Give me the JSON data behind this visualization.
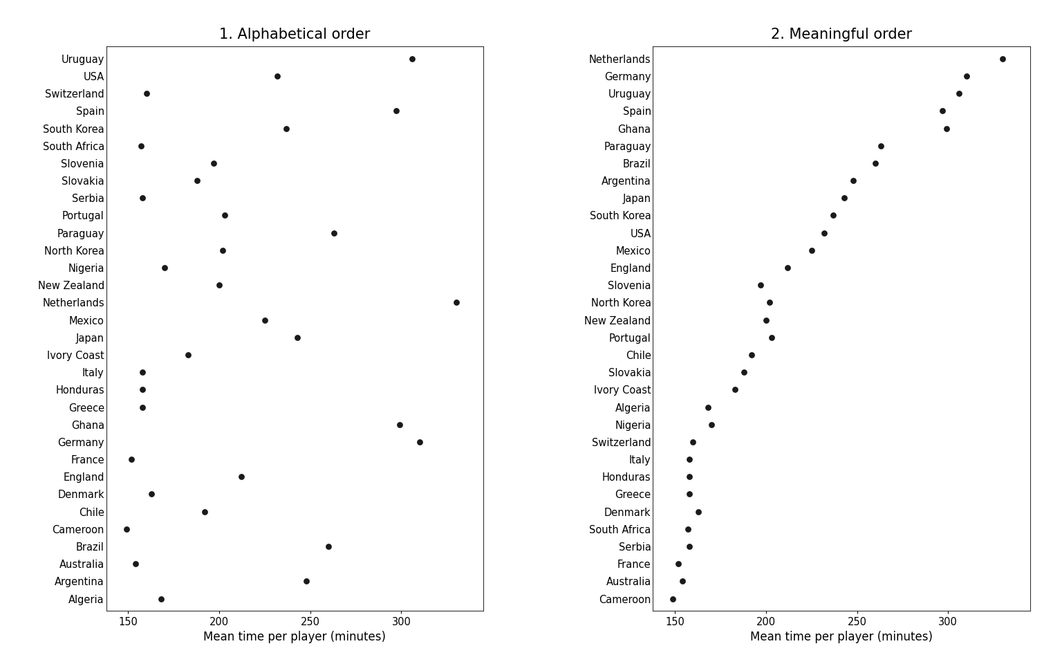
{
  "teams_alpha": [
    "Uruguay",
    "USA",
    "Switzerland",
    "Spain",
    "South Korea",
    "South Africa",
    "Slovenia",
    "Slovakia",
    "Serbia",
    "Portugal",
    "Paraguay",
    "North Korea",
    "Nigeria",
    "New Zealand",
    "Netherlands",
    "Mexico",
    "Japan",
    "Ivory Coast",
    "Italy",
    "Honduras",
    "Greece",
    "Ghana",
    "Germany",
    "France",
    "England",
    "Denmark",
    "Chile",
    "Cameroon",
    "Brazil",
    "Australia",
    "Argentina",
    "Algeria"
  ],
  "values_alpha": [
    306,
    232,
    160,
    297,
    237,
    157,
    197,
    188,
    158,
    203,
    263,
    202,
    170,
    200,
    330,
    225,
    243,
    183,
    158,
    158,
    158,
    299,
    310,
    152,
    212,
    163,
    192,
    149,
    260,
    154,
    248,
    168
  ],
  "teams_meaningful": [
    "Netherlands",
    "Germany",
    "Uruguay",
    "Spain",
    "Ghana",
    "Paraguay",
    "Brazil",
    "Argentina",
    "Japan",
    "South Korea",
    "USA",
    "Mexico",
    "England",
    "Slovenia",
    "North Korea",
    "New Zealand",
    "Portugal",
    "Chile",
    "Slovakia",
    "Ivory Coast",
    "Algeria",
    "Nigeria",
    "Switzerland",
    "Italy",
    "Honduras",
    "Greece",
    "Denmark",
    "South Africa",
    "Serbia",
    "France",
    "Australia",
    "Cameroon"
  ],
  "values_meaningful": [
    330,
    310,
    306,
    297,
    299,
    263,
    260,
    248,
    243,
    237,
    232,
    225,
    212,
    197,
    202,
    200,
    203,
    192,
    188,
    183,
    168,
    170,
    160,
    158,
    158,
    158,
    163,
    157,
    158,
    152,
    154,
    149
  ],
  "title1": "1. Alphabetical order",
  "title2": "2. Meaningful order",
  "xlabel": "Mean time per player (minutes)",
  "xlim": [
    138,
    345
  ],
  "xticks": [
    150,
    200,
    250,
    300
  ],
  "dot_color": "#1a1a1a",
  "dot_size": 40,
  "background_color": "#ffffff",
  "title_fontsize": 15,
  "label_fontsize": 12,
  "tick_fontsize": 10.5
}
